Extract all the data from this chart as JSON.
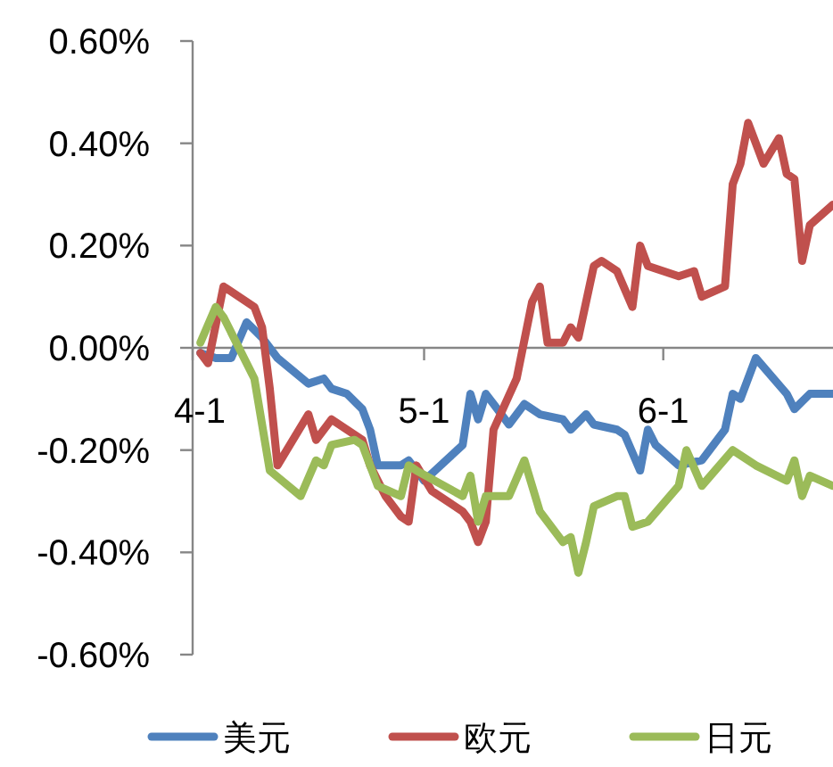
{
  "chart_data": {
    "type": "line",
    "xlim": [
      "--04-01",
      "--06-23"
    ],
    "xticks": [
      {
        "value": "--04-01",
        "label": "4-1"
      },
      {
        "value": "--05-01",
        "label": "5-1"
      },
      {
        "value": "--06-01",
        "label": "6-1"
      }
    ],
    "ylim": [
      -0.6,
      0.6
    ],
    "yticks": [
      {
        "value": 0.6,
        "label": "0.60%"
      },
      {
        "value": 0.4,
        "label": "0.40%"
      },
      {
        "value": 0.2,
        "label": "0.20%"
      },
      {
        "value": 0,
        "label": "0.00%"
      },
      {
        "value": -0.2,
        "label": "-0.20%"
      },
      {
        "value": -0.4,
        "label": "-0.40%"
      },
      {
        "value": -0.6,
        "label": "-0.60%"
      }
    ],
    "legend": "bottom",
    "series": [
      {
        "name": "美元",
        "color": "#4f81bd",
        "x": [
          "--04-02",
          "--04-04",
          "--04-06",
          "--04-08",
          "--04-10",
          "--04-12",
          "--04-16",
          "--04-18",
          "--04-19",
          "--04-21",
          "--04-23",
          "--04-24",
          "--04-25",
          "--04-28",
          "--04-29",
          "--05-01",
          "--05-06",
          "--05-07",
          "--05-08",
          "--05-09",
          "--05-10",
          "--05-12",
          "--05-14",
          "--05-16",
          "--05-19",
          "--05-20",
          "--05-22",
          "--05-23",
          "--05-26",
          "--05-27",
          "--05-29",
          "--05-30",
          "--05-31",
          "--06-03",
          "--06-06",
          "--06-09",
          "--06-10",
          "--06-11",
          "--06-13",
          "--06-17",
          "--06-18",
          "--06-20",
          "--06-23"
        ],
        "values": [
          -0.01,
          -0.02,
          -0.02,
          0.05,
          0.02,
          -0.02,
          -0.07,
          -0.06,
          -0.08,
          -0.09,
          -0.12,
          -0.16,
          -0.23,
          -0.23,
          -0.22,
          -0.26,
          -0.19,
          -0.09,
          -0.14,
          -0.09,
          -0.11,
          -0.15,
          -0.11,
          -0.13,
          -0.14,
          -0.16,
          -0.13,
          -0.15,
          -0.16,
          -0.17,
          -0.24,
          -0.16,
          -0.19,
          -0.23,
          -0.22,
          -0.16,
          -0.09,
          -0.1,
          -0.02,
          -0.09,
          -0.12,
          -0.09,
          -0.09
        ]
      },
      {
        "name": "欧元",
        "color": "#c0504d",
        "x": [
          "--04-02",
          "--04-03",
          "--04-05",
          "--04-09",
          "--04-10",
          "--04-11",
          "--04-12",
          "--04-16",
          "--04-17",
          "--04-19",
          "--04-21",
          "--04-23",
          "--04-24",
          "--04-26",
          "--04-28",
          "--04-29",
          "--04-30",
          "--05-02",
          "--05-06",
          "--05-07",
          "--05-08",
          "--05-09",
          "--05-10",
          "--05-13",
          "--05-15",
          "--05-16",
          "--05-17",
          "--05-19",
          "--05-20",
          "--05-21",
          "--05-23",
          "--05-24",
          "--05-25",
          "--05-26",
          "--05-28",
          "--05-29",
          "--05-30",
          "--06-03",
          "--06-05",
          "--06-06",
          "--06-09",
          "--06-10",
          "--06-11",
          "--06-12",
          "--06-14",
          "--06-16",
          "--06-17",
          "--06-18",
          "--06-19",
          "--06-20",
          "--06-23"
        ],
        "values": [
          -0.01,
          -0.03,
          0.12,
          0.08,
          0.04,
          -0.08,
          -0.23,
          -0.13,
          -0.18,
          -0.14,
          -0.16,
          -0.18,
          -0.23,
          -0.29,
          -0.33,
          -0.34,
          -0.23,
          -0.28,
          -0.32,
          -0.34,
          -0.38,
          -0.34,
          -0.16,
          -0.06,
          0.09,
          0.12,
          0.01,
          0.01,
          0.04,
          0.02,
          0.16,
          0.17,
          0.16,
          0.15,
          0.08,
          0.2,
          0.16,
          0.14,
          0.15,
          0.1,
          0.12,
          0.32,
          0.36,
          0.44,
          0.36,
          0.41,
          0.34,
          0.33,
          0.17,
          0.24,
          0.28
        ]
      },
      {
        "name": "日元",
        "color": "#9bbb59",
        "x": [
          "--04-02",
          "--04-04",
          "--04-05",
          "--04-09",
          "--04-11",
          "--04-15",
          "--04-17",
          "--04-18",
          "--04-19",
          "--04-22",
          "--04-23",
          "--04-25",
          "--04-28",
          "--04-29",
          "--04-30",
          "--05-06",
          "--05-07",
          "--05-08",
          "--05-09",
          "--05-12",
          "--05-14",
          "--05-16",
          "--05-19",
          "--05-20",
          "--05-21",
          "--05-22",
          "--05-23",
          "--05-26",
          "--05-27",
          "--05-28",
          "--05-30",
          "--06-03",
          "--06-04",
          "--06-06",
          "--06-10",
          "--06-13",
          "--06-17",
          "--06-18",
          "--06-19",
          "--06-20",
          "--06-23"
        ],
        "values": [
          0.01,
          0.08,
          0.06,
          -0.06,
          -0.24,
          -0.29,
          -0.22,
          -0.23,
          -0.19,
          -0.18,
          -0.19,
          -0.27,
          -0.29,
          -0.23,
          -0.24,
          -0.29,
          -0.25,
          -0.34,
          -0.29,
          -0.29,
          -0.22,
          -0.32,
          -0.38,
          -0.37,
          -0.44,
          -0.38,
          -0.31,
          -0.29,
          -0.29,
          -0.35,
          -0.34,
          -0.27,
          -0.2,
          -0.27,
          -0.2,
          -0.23,
          -0.26,
          -0.22,
          -0.29,
          -0.25,
          -0.27
        ]
      }
    ]
  }
}
